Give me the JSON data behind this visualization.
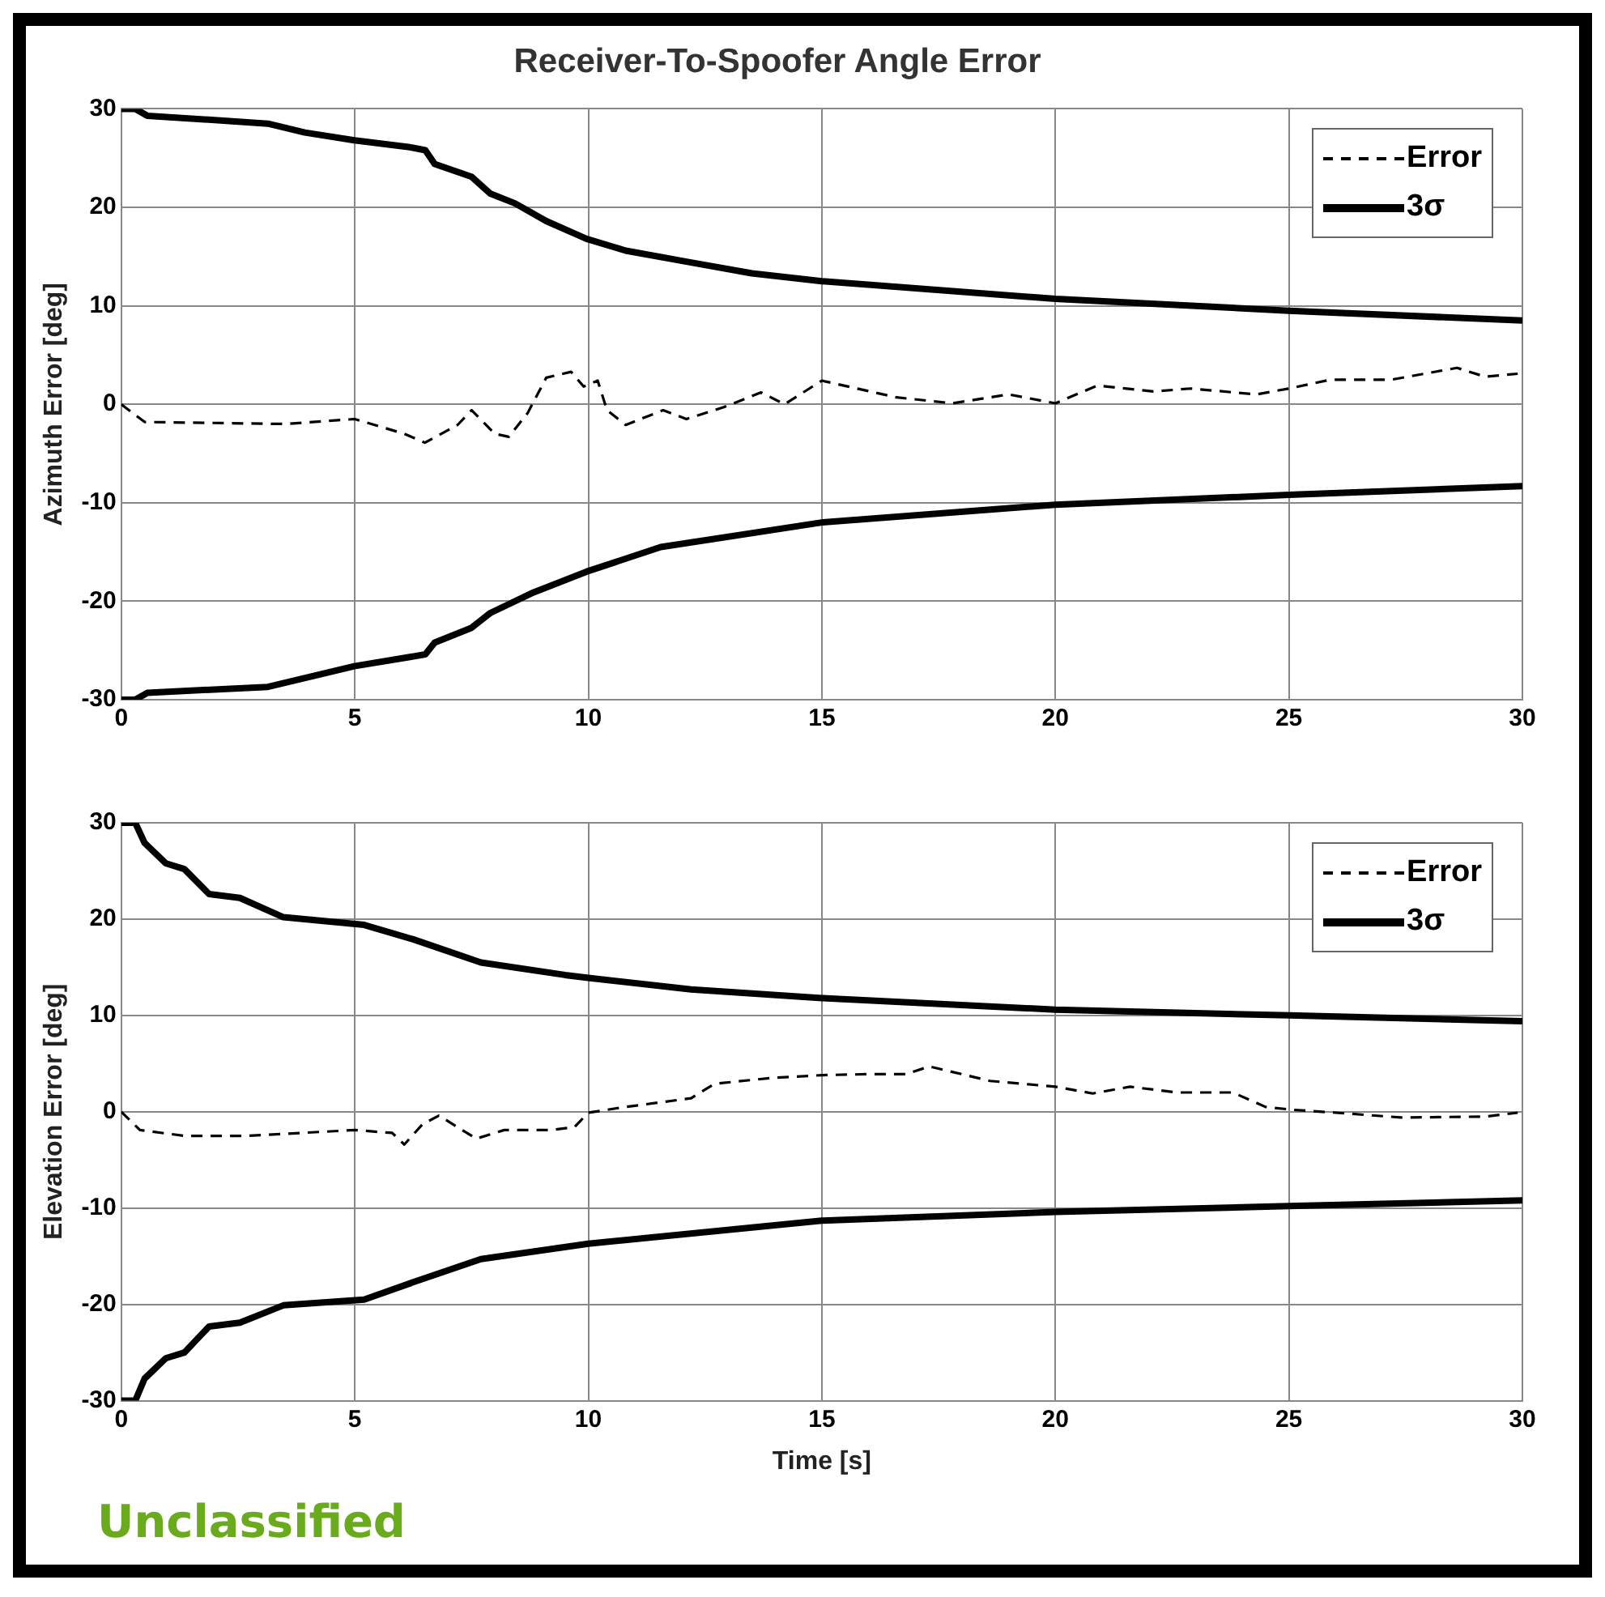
{
  "chart_data": [
    {
      "type": "line",
      "title": "Receiver-To-Spoofer Angle Error",
      "ylabel": "Azimuth Error [deg]",
      "xlim": [
        0,
        30
      ],
      "xticks": [
        0,
        5,
        10,
        15,
        20,
        25,
        30
      ],
      "ylim": [
        -30,
        30
      ],
      "yticks": [
        -30,
        -20,
        -10,
        0,
        10,
        20,
        30
      ],
      "grid": true,
      "legend": "top right",
      "marker": "none",
      "series": [
        {
          "name": "Error",
          "color": "#000000",
          "line_style": "dashed",
          "x": [
            0,
            0.5,
            3.5,
            5,
            6.06,
            6.5,
            7.2,
            7.5,
            8,
            8.3,
            8.7,
            9.1,
            9.63,
            9.9,
            10.2,
            10.4,
            10.8,
            11.6,
            12.1,
            12.9,
            13.7,
            14.2,
            15,
            16.6,
            17.8,
            19,
            20,
            20.9,
            22.1,
            22.9,
            24.3,
            25,
            25.9,
            27.2,
            28.6,
            29.2,
            29.9
          ],
          "values": [
            0,
            -1.8,
            -2,
            -1.5,
            -3,
            -3.9,
            -2.1,
            -0.6,
            -3,
            -3.3,
            -0.9,
            2.7,
            3.3,
            1.8,
            2.4,
            -0.6,
            -2.1,
            -0.6,
            -1.5,
            -0.3,
            1.2,
            0,
            2.4,
            0.7,
            0.1,
            1,
            0.1,
            1.9,
            1.3,
            1.6,
            1,
            1.6,
            2.5,
            2.5,
            3.7,
            2.8,
            3.1
          ]
        },
        {
          "name": "3σ",
          "color": "#000000",
          "line_style": "solid",
          "x": [
            0,
            0.3,
            0.56,
            3.14,
            3.93,
            4.99,
            6.18,
            6.51,
            6.71,
            7.5,
            7.9,
            8.43,
            9.1,
            9.96,
            10.8,
            12.2,
            13.5,
            15,
            20,
            25,
            30
          ],
          "values": [
            30,
            30,
            29.3,
            28.5,
            27.6,
            26.8,
            26.1,
            25.8,
            24.4,
            23.1,
            21.4,
            20.4,
            18.6,
            16.8,
            15.6,
            14.4,
            13.3,
            12.5,
            10.7,
            9.5,
            8.5
          ]
        },
        {
          "color": "#000000",
          "line_style": "solid",
          "x": [
            0,
            0.3,
            0.56,
            3.14,
            4.99,
            6.51,
            6.71,
            7.5,
            7.9,
            8.83,
            9.96,
            11.55,
            15,
            20,
            25,
            30
          ],
          "values": [
            -30,
            -30,
            -29.3,
            -28.7,
            -26.6,
            -25.4,
            -24.2,
            -22.7,
            -21.2,
            -19.1,
            -17,
            -14.5,
            -12,
            -10.2,
            -9.2,
            -8.3
          ]
        }
      ]
    },
    {
      "type": "line",
      "xlabel": "Time [s]",
      "ylabel": "Elevation Error [deg]",
      "xlim": [
        0,
        30
      ],
      "xticks": [
        0,
        5,
        10,
        15,
        20,
        25,
        30
      ],
      "ylim": [
        -30,
        30
      ],
      "yticks": [
        -30,
        -20,
        -10,
        0,
        10,
        20,
        30
      ],
      "grid": true,
      "legend": "top right",
      "marker": "none",
      "annotations": [
        "Unclassified"
      ],
      "series": [
        {
          "name": "Error",
          "color": "#000000",
          "line_style": "dashed",
          "x": [
            0,
            0.4,
            1.35,
            2.7,
            5,
            5.8,
            6.06,
            6.45,
            6.8,
            7.2,
            7.6,
            8.2,
            9.2,
            9.7,
            10,
            10.8,
            12.2,
            12.7,
            13.9,
            15,
            16,
            16.8,
            17.3,
            18,
            18.6,
            20,
            20.8,
            21.6,
            22.6,
            23.8,
            24.5,
            25.1,
            26.3,
            27.4,
            29.2,
            29.9
          ],
          "values": [
            0,
            -1.9,
            -2.5,
            -2.5,
            -1.9,
            -2.2,
            -3.4,
            -1.3,
            -0.4,
            -1.6,
            -2.8,
            -1.9,
            -1.9,
            -1.6,
            -0.1,
            0.5,
            1.4,
            2.9,
            3.5,
            3.8,
            3.9,
            3.9,
            4.7,
            3.9,
            3.2,
            2.6,
            1.9,
            2.6,
            2,
            2,
            0.5,
            0.2,
            -0.2,
            -0.6,
            -0.5,
            -0.1
          ]
        },
        {
          "name": "3σ",
          "color": "#000000",
          "line_style": "solid",
          "x": [
            0,
            0.3,
            0.5,
            0.95,
            1.35,
            1.88,
            2.54,
            3.47,
            5.2,
            6.25,
            7.7,
            9.5,
            10,
            12.2,
            15,
            20,
            25,
            30
          ],
          "values": [
            30,
            30,
            27.9,
            25.8,
            25.2,
            22.6,
            22.2,
            20.2,
            19.4,
            17.9,
            15.5,
            14.2,
            13.9,
            12.7,
            11.8,
            10.6,
            10,
            9.4
          ]
        },
        {
          "color": "#000000",
          "line_style": "solid",
          "x": [
            0,
            0.3,
            0.5,
            0.95,
            1.35,
            1.88,
            2.54,
            3.47,
            5.2,
            6.25,
            7.7,
            10,
            15,
            20,
            25,
            30
          ],
          "values": [
            -30,
            -30,
            -27.7,
            -25.6,
            -25,
            -22.3,
            -21.9,
            -20.1,
            -19.5,
            -17.7,
            -15.3,
            -13.7,
            -11.3,
            -10.4,
            -9.8,
            -9.2
          ]
        }
      ]
    }
  ]
}
